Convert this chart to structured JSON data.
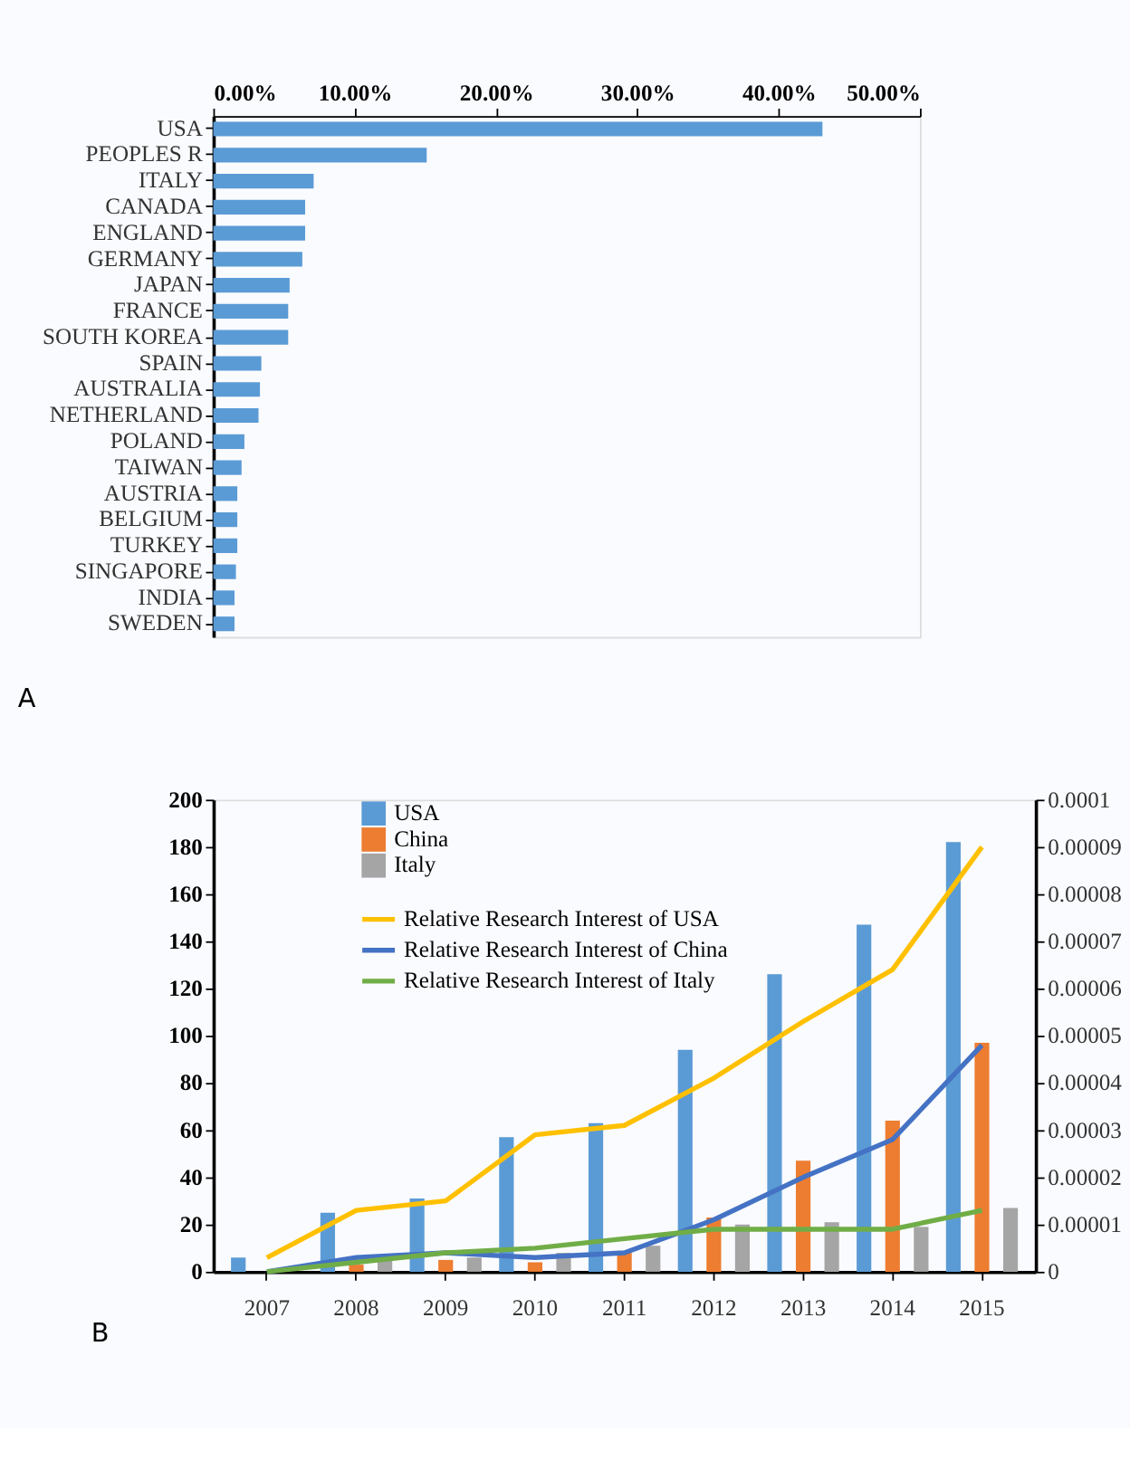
{
  "chart_data": [
    {
      "type": "bar",
      "orientation": "horizontal",
      "grid": false,
      "categories": [
        "USA",
        "PEOPLES R",
        "ITALY",
        "CANADA",
        "ENGLAND",
        "GERMANY",
        "JAPAN",
        "FRANCE",
        "SOUTH KOREA",
        "SPAIN",
        "AUSTRALIA",
        "NETHERLAND",
        "POLAND",
        "TAIWAN",
        "AUSTRIA",
        "BELGIUM",
        "TURKEY",
        "SINGAPORE",
        "INDIA",
        "SWEDEN"
      ],
      "values": [
        43.1,
        15.1,
        7.1,
        6.5,
        6.5,
        6.3,
        5.4,
        5.3,
        5.3,
        3.4,
        3.3,
        3.2,
        2.2,
        2.0,
        1.7,
        1.7,
        1.7,
        1.6,
        1.5,
        1.5
      ],
      "color": "#5b9bd5",
      "xlim": [
        0,
        50
      ],
      "xticks": [
        {
          "value": 0,
          "label": "0.00%"
        },
        {
          "value": 10,
          "label": "10.00%"
        },
        {
          "value": 20,
          "label": "20.00%"
        },
        {
          "value": 30,
          "label": "30.00%"
        },
        {
          "value": 40,
          "label": "40.00%"
        },
        {
          "value": 50,
          "label": "50.00%"
        }
      ],
      "annotations": [
        "A"
      ]
    },
    {
      "type": "bar",
      "grid": false,
      "legend": "top left",
      "marker": "none",
      "line_style": "solid",
      "categories": [
        "2007",
        "2008",
        "2009",
        "2010",
        "2011",
        "2012",
        "2013",
        "2014",
        "2015"
      ],
      "series": [
        {
          "name": "USA",
          "type": "bar",
          "color": "#5b9bd5",
          "values": [
            6,
            25,
            31,
            57,
            63,
            94,
            126,
            147,
            182
          ]
        },
        {
          "name": "China",
          "type": "bar",
          "color": "#ed7d31",
          "values": [
            0,
            3,
            5,
            4,
            8,
            23,
            47,
            64,
            97
          ]
        },
        {
          "name": "Italy",
          "type": "bar",
          "color": "#a5a5a5",
          "values": [
            0,
            5,
            6,
            8,
            11,
            20,
            21,
            19,
            27
          ]
        },
        {
          "name": "Relative Research Interest of USA",
          "type": "line",
          "axis": "y2",
          "color": "#ffc000",
          "values": [
            3e-06,
            1.3e-05,
            1.5e-05,
            2.9e-05,
            3.1e-05,
            4.1e-05,
            5.3e-05,
            6.4e-05,
            9e-05
          ]
        },
        {
          "name": "Relative Research Interest of China",
          "type": "line",
          "axis": "y2",
          "color": "#4472c4",
          "values": [
            0,
            3e-06,
            4e-06,
            3e-06,
            4e-06,
            1.1e-05,
            2e-05,
            2.8e-05,
            4.8e-05
          ]
        },
        {
          "name": "Relative Research Interest of Italy",
          "type": "line",
          "axis": "y2",
          "color": "#70ad47",
          "values": [
            0,
            2e-06,
            4e-06,
            5e-06,
            7e-06,
            9e-06,
            9e-06,
            9e-06,
            1.3e-05
          ]
        }
      ],
      "ylim": [
        0,
        200
      ],
      "yticks": [
        0,
        20,
        40,
        60,
        80,
        100,
        120,
        140,
        160,
        180,
        200
      ],
      "y2lim": [
        0,
        0.0001
      ],
      "y2ticks": [
        0,
        {
          "value": 1e-05,
          "label": "0.00001"
        },
        {
          "value": 2e-05,
          "label": "0.00002"
        },
        {
          "value": 3e-05,
          "label": "0.00003"
        },
        {
          "value": 4e-05,
          "label": "0.00004"
        },
        {
          "value": 5e-05,
          "label": "0.00005"
        },
        {
          "value": 6e-05,
          "label": "0.00006"
        },
        {
          "value": 7e-05,
          "label": "0.00007"
        },
        {
          "value": 8e-05,
          "label": "0.00008"
        },
        {
          "value": 9e-05,
          "label": "0.00009"
        },
        0.0001
      ],
      "annotations": [
        "B"
      ]
    }
  ]
}
